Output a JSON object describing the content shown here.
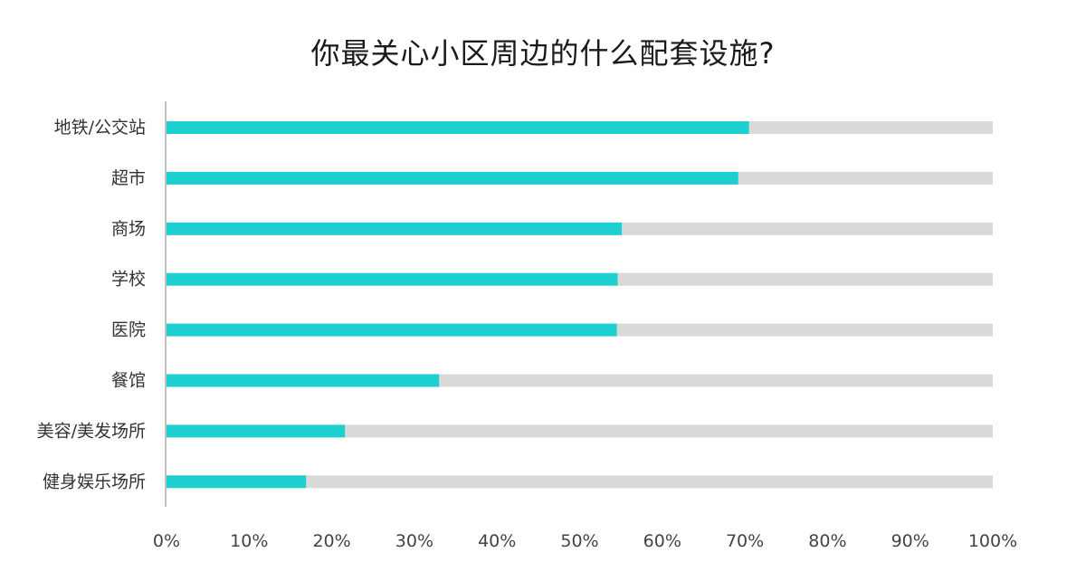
{
  "chart_data": {
    "type": "bar",
    "orientation": "horizontal",
    "stacked_with_remainder": true,
    "title": "你最关心小区周边的什么配套设施?",
    "categories": [
      "地铁/公交站",
      "超市",
      "商场",
      "学校",
      "医院",
      "餐馆",
      "美容/美发场所",
      "健身娱乐场所"
    ],
    "values": [
      70.5,
      69.2,
      55.1,
      54.6,
      54.5,
      33.0,
      21.6,
      16.9
    ],
    "xlim": [
      0,
      100
    ],
    "x_ticks": [
      "0%",
      "10%",
      "20%",
      "30%",
      "40%",
      "50%",
      "60%",
      "70%",
      "80%",
      "90%",
      "100%"
    ],
    "grid": false,
    "legend": "none",
    "colors": {
      "bar": "#1ECFCF",
      "remainder": "#D9D9D9",
      "axis": "#BFBFBF"
    }
  }
}
